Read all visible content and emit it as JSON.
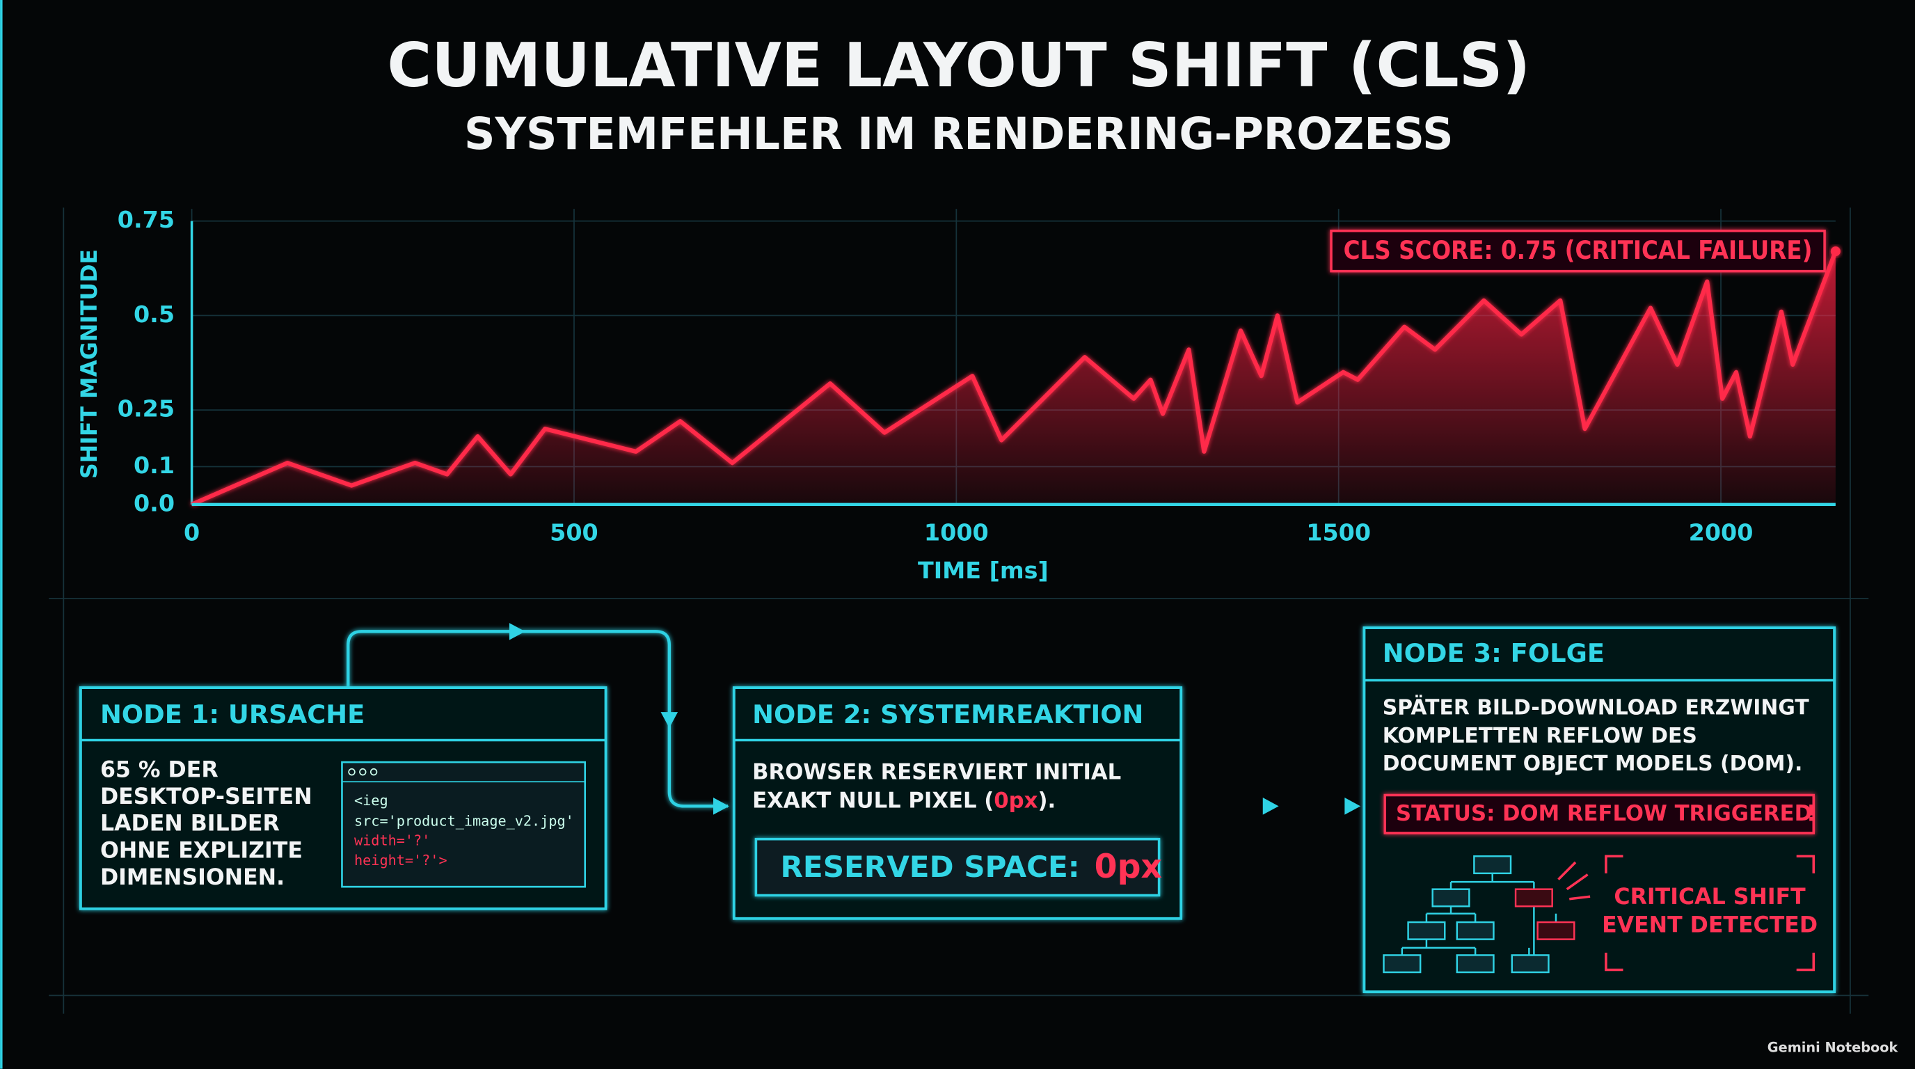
{
  "chart_data": {
    "type": "line",
    "title": "CUMULATIVE LAYOUT SHIFT (CLS)",
    "subtitle": "SYSTEMFEHLER IM RENDERING-PROZESS",
    "y_label": "SHIFT MAGNITUDE",
    "x_label": "TIME [ms]",
    "annotation": "CLS SCORE: 0.75 (CRITICAL FAILURE)",
    "x": [
      0,
      125,
      209,
      292,
      334,
      374,
      417,
      462,
      581,
      639,
      707,
      835,
      906,
      1021,
      1059,
      1168,
      1232,
      1254,
      1270,
      1304,
      1324,
      1372,
      1399,
      1420,
      1446,
      1506,
      1525,
      1586,
      1626,
      1690,
      1739,
      1790,
      1822,
      1908,
      1943,
      1982,
      2002,
      2020,
      2038,
      2079,
      2094,
      2150
    ],
    "series": [
      {
        "name": "CLS",
        "color": "#ff2a4a",
        "values": [
          0,
          0.11,
          0.05,
          0.11,
          0.08,
          0.18,
          0.08,
          0.2,
          0.14,
          0.22,
          0.11,
          0.32,
          0.19,
          0.34,
          0.17,
          0.39,
          0.28,
          0.33,
          0.24,
          0.41,
          0.14,
          0.46,
          0.34,
          0.5,
          0.27,
          0.35,
          0.33,
          0.47,
          0.41,
          0.54,
          0.45,
          0.54,
          0.2,
          0.52,
          0.37,
          0.59,
          0.28,
          0.35,
          0.18,
          0.51,
          0.37,
          0.67
        ]
      }
    ],
    "xlim": [
      0,
      2150
    ],
    "xticks": [
      0,
      500,
      1000,
      1500,
      2000
    ],
    "ylim": [
      0,
      0.75
    ],
    "yticks": [
      {
        "value": 0,
        "label": "0.0"
      },
      0.1,
      0.25,
      0.5,
      0.75
    ],
    "grid": true,
    "axis_color": "#33d6e6"
  },
  "nodes": [
    {
      "title": "NODE 1:  URSACHE",
      "lines": [
        "65 % DER",
        "DESKTOP-SEITEN",
        "LADEN BILDER",
        "OHNE EXPLIZITE",
        "DIMENSIONEN."
      ],
      "code": [
        "<ieg",
        "src='product_image_v2.jpg'",
        "width='?'",
        "height='?'>"
      ]
    },
    {
      "title": "NODE 2:  SYSTEMREAKTION",
      "lines": [
        "BROWSER RESERVIERT INITIAL"
      ],
      "line2": [
        "EXAKT NULL PIXEL (",
        "0px",
        ")."
      ],
      "reserved": {
        "label": "RESERVED SPACE:",
        "value": "0px"
      }
    },
    {
      "title": "NODE 3:  FOLGE",
      "lines": [
        "SPÄTER BILD-DOWNLOAD ERZWINGT",
        "KOMPLETTEN REFLOW DES",
        "DOCUMENT OBJECT MODELS (DOM)."
      ],
      "status": "STATUS:  DOM REFLOW TRIGGERED",
      "status_icon": "!",
      "alert": [
        "CRITICAL SHIFT",
        "EVENT DETECTED"
      ]
    }
  ],
  "watermark": "Gemini Notebook"
}
